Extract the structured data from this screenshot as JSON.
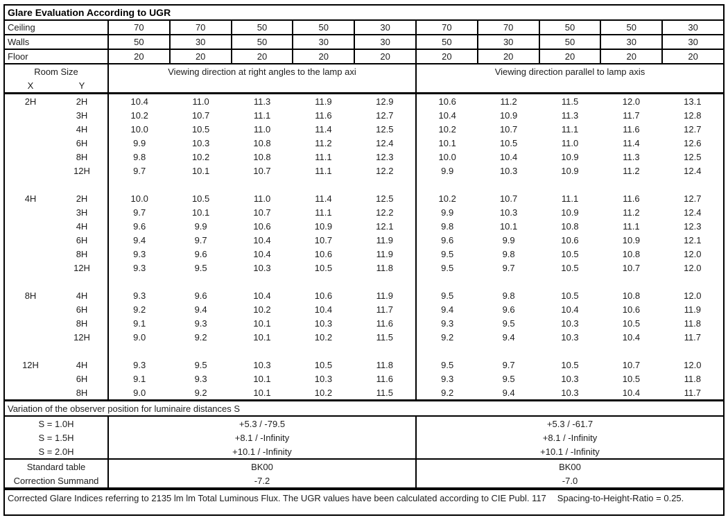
{
  "title": "Glare Evaluation According to UGR",
  "surface_rows": [
    {
      "label": "Ceiling",
      "values": [
        "70",
        "70",
        "50",
        "50",
        "30",
        "70",
        "70",
        "50",
        "50",
        "30"
      ]
    },
    {
      "label": "Walls",
      "values": [
        "50",
        "30",
        "50",
        "30",
        "30",
        "50",
        "30",
        "50",
        "30",
        "30"
      ]
    },
    {
      "label": "Floor",
      "values": [
        "20",
        "20",
        "20",
        "20",
        "20",
        "20",
        "20",
        "20",
        "20",
        "20"
      ]
    }
  ],
  "header": {
    "room_size": "Room Size",
    "x": "X",
    "y": "Y",
    "left_heading": "Viewing direction at right angles to the lamp axi",
    "right_heading": "Viewing direction parallel to lamp axis"
  },
  "blocks": [
    {
      "x": "2H",
      "rows": [
        {
          "y": "2H",
          "values": [
            "10.4",
            "11.0",
            "11.3",
            "11.9",
            "12.9",
            "10.6",
            "11.2",
            "11.5",
            "12.0",
            "13.1"
          ]
        },
        {
          "y": "3H",
          "values": [
            "10.2",
            "10.7",
            "11.1",
            "11.6",
            "12.7",
            "10.4",
            "10.9",
            "11.3",
            "11.7",
            "12.8"
          ]
        },
        {
          "y": "4H",
          "values": [
            "10.0",
            "10.5",
            "11.0",
            "11.4",
            "12.5",
            "10.2",
            "10.7",
            "11.1",
            "11.6",
            "12.7"
          ]
        },
        {
          "y": "6H",
          "values": [
            "9.9",
            "10.3",
            "10.8",
            "11.2",
            "12.4",
            "10.1",
            "10.5",
            "11.0",
            "11.4",
            "12.6"
          ]
        },
        {
          "y": "8H",
          "values": [
            "9.8",
            "10.2",
            "10.8",
            "11.1",
            "12.3",
            "10.0",
            "10.4",
            "10.9",
            "11.3",
            "12.5"
          ]
        },
        {
          "y": "12H",
          "values": [
            "9.7",
            "10.1",
            "10.7",
            "11.1",
            "12.2",
            "9.9",
            "10.3",
            "10.9",
            "11.2",
            "12.4"
          ]
        }
      ]
    },
    {
      "x": "4H",
      "rows": [
        {
          "y": "2H",
          "values": [
            "10.0",
            "10.5",
            "11.0",
            "11.4",
            "12.5",
            "10.2",
            "10.7",
            "11.1",
            "11.6",
            "12.7"
          ]
        },
        {
          "y": "3H",
          "values": [
            "9.7",
            "10.1",
            "10.7",
            "11.1",
            "12.2",
            "9.9",
            "10.3",
            "10.9",
            "11.2",
            "12.4"
          ]
        },
        {
          "y": "4H",
          "values": [
            "9.6",
            "9.9",
            "10.6",
            "10.9",
            "12.1",
            "9.8",
            "10.1",
            "10.8",
            "11.1",
            "12.3"
          ]
        },
        {
          "y": "6H",
          "values": [
            "9.4",
            "9.7",
            "10.4",
            "10.7",
            "11.9",
            "9.6",
            "9.9",
            "10.6",
            "10.9",
            "12.1"
          ]
        },
        {
          "y": "8H",
          "values": [
            "9.3",
            "9.6",
            "10.4",
            "10.6",
            "11.9",
            "9.5",
            "9.8",
            "10.5",
            "10.8",
            "12.0"
          ]
        },
        {
          "y": "12H",
          "values": [
            "9.3",
            "9.5",
            "10.3",
            "10.5",
            "11.8",
            "9.5",
            "9.7",
            "10.5",
            "10.7",
            "12.0"
          ]
        }
      ]
    },
    {
      "x": "8H",
      "rows": [
        {
          "y": "4H",
          "values": [
            "9.3",
            "9.6",
            "10.4",
            "10.6",
            "11.9",
            "9.5",
            "9.8",
            "10.5",
            "10.8",
            "12.0"
          ]
        },
        {
          "y": "6H",
          "values": [
            "9.2",
            "9.4",
            "10.2",
            "10.4",
            "11.7",
            "9.4",
            "9.6",
            "10.4",
            "10.6",
            "11.9"
          ]
        },
        {
          "y": "8H",
          "values": [
            "9.1",
            "9.3",
            "10.1",
            "10.3",
            "11.6",
            "9.3",
            "9.5",
            "10.3",
            "10.5",
            "11.8"
          ]
        },
        {
          "y": "12H",
          "values": [
            "9.0",
            "9.2",
            "10.1",
            "10.2",
            "11.5",
            "9.2",
            "9.4",
            "10.3",
            "10.4",
            "11.7"
          ]
        }
      ]
    },
    {
      "x": "12H",
      "rows": [
        {
          "y": "4H",
          "values": [
            "9.3",
            "9.5",
            "10.3",
            "10.5",
            "11.8",
            "9.5",
            "9.7",
            "10.5",
            "10.7",
            "12.0"
          ]
        },
        {
          "y": "6H",
          "values": [
            "9.1",
            "9.3",
            "10.1",
            "10.3",
            "11.6",
            "9.3",
            "9.5",
            "10.3",
            "10.5",
            "11.8"
          ]
        },
        {
          "y": "8H",
          "values": [
            "9.0",
            "9.2",
            "10.1",
            "10.2",
            "11.5",
            "9.2",
            "9.4",
            "10.3",
            "10.4",
            "11.7"
          ]
        }
      ]
    }
  ],
  "variation": {
    "heading": "Variation of the observer position for luminaire distances S",
    "rows": [
      {
        "label": "S = 1.0H",
        "left": "+5.3 / -79.5",
        "right": "+5.3 / -61.7"
      },
      {
        "label": "S = 1.5H",
        "left": "+8.1 / -Infinity",
        "right": "+8.1 / -Infinity"
      },
      {
        "label": "S = 2.0H",
        "left": "+10.1 / -Infinity",
        "right": "+10.1 / -Infinity"
      }
    ]
  },
  "summary": {
    "rows": [
      {
        "label": "Standard table",
        "left": "BK00",
        "right": "BK00"
      },
      {
        "label": "Correction Summand",
        "left": "-7.2",
        "right": "-7.0"
      }
    ]
  },
  "footer": {
    "text": "Corrected Glare Indices referring to 2135 lm lm Total Luminous Flux. The UGR values have been calculated according to CIE Publ. 117",
    "ratio": "Spacing-to-Height-Ratio = 0.25."
  },
  "colors": {
    "border": "#000000",
    "text": "#1c1c1c",
    "background": "#ffffff"
  }
}
